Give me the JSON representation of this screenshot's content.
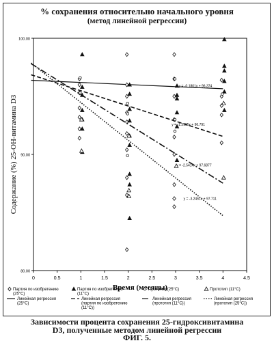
{
  "chart_data": {
    "type": "scatter",
    "title": "% сохранения относительно начального уровня",
    "subtitle": "(метод линейной регрессии)",
    "xlabel": "Время (месяцы)",
    "ylabel": "Содержание (%) 25-ОН-витамина D3",
    "xlim": [
      0,
      4.5
    ],
    "ylim": [
      80,
      100
    ],
    "x_ticks": [
      0,
      0.5,
      1,
      1.5,
      2,
      2.5,
      3,
      3.5,
      4,
      4.5
    ],
    "y_ticks": [
      80,
      90,
      100
    ],
    "x_tick_labels": [
      "0",
      "0.5",
      "1",
      "1.5",
      "2",
      "2.5",
      "3",
      "3.5",
      "4",
      "4.5"
    ],
    "y_tick_labels": [
      "80.00",
      "90.00",
      "100.00"
    ],
    "series": [
      {
        "name": "Партия по изобретению (25°C)",
        "marker": "diamond",
        "points": [
          [
            1,
            96.5
          ],
          [
            1,
            96.0
          ],
          [
            1,
            95.3
          ],
          [
            1,
            94.0
          ],
          [
            1,
            93.2
          ],
          [
            1,
            92.2
          ],
          [
            1,
            91.4
          ],
          [
            2,
            98.6
          ],
          [
            2,
            96.0
          ],
          [
            2,
            95.0
          ],
          [
            2,
            93.6
          ],
          [
            2,
            92.8
          ],
          [
            2,
            91.8
          ],
          [
            2,
            90.4
          ],
          [
            2,
            88.0
          ],
          [
            2,
            86.5
          ],
          [
            2,
            81.8
          ],
          [
            3,
            98.6
          ],
          [
            3,
            96.5
          ],
          [
            3,
            95.0
          ],
          [
            3,
            93.0
          ],
          [
            3,
            91.5
          ],
          [
            3,
            90.0
          ],
          [
            3,
            87.4
          ],
          [
            3,
            86.2
          ],
          [
            3,
            85.5
          ],
          [
            4,
            96.4
          ],
          [
            4,
            95.0
          ],
          [
            4,
            94.2
          ],
          [
            4,
            93.4
          ],
          [
            4,
            91.0
          ]
        ]
      },
      {
        "name": "Партия по изобретению (11°C)",
        "marker": "triangle-filled",
        "points": [
          [
            1,
            98.6
          ],
          [
            1,
            95.8
          ],
          [
            1,
            95.1
          ],
          [
            1,
            93.8
          ],
          [
            1,
            93.0
          ],
          [
            1,
            92.2
          ],
          [
            1,
            90.2
          ],
          [
            2,
            96.0
          ],
          [
            2,
            95.2
          ],
          [
            2,
            93.9
          ],
          [
            2,
            92.9
          ],
          [
            2,
            91.6
          ],
          [
            2,
            90.8
          ],
          [
            2,
            88.3
          ],
          [
            2,
            87.4
          ],
          [
            2,
            84.5
          ],
          [
            3,
            95.9
          ],
          [
            3,
            95.1
          ],
          [
            3,
            94.8
          ],
          [
            3,
            93.6
          ],
          [
            3,
            92.4
          ],
          [
            3,
            89.5
          ],
          [
            4,
            99.9
          ],
          [
            4,
            97.6
          ],
          [
            4,
            97.2
          ],
          [
            4,
            96.3
          ],
          [
            4,
            95.4
          ],
          [
            4,
            93.8
          ]
        ]
      },
      {
        "name": "Прототип (25°C)",
        "marker": "circle",
        "points": [
          [
            1,
            96.6
          ],
          [
            1,
            95.3
          ],
          [
            2,
            94.4
          ],
          [
            2,
            93.5
          ],
          [
            2,
            89.9
          ],
          [
            3,
            96.5
          ],
          [
            3,
            93.0
          ],
          [
            3,
            92.0
          ],
          [
            4,
            95.2
          ]
        ]
      },
      {
        "name": "Прототип (11°C)",
        "marker": "triangle-open",
        "points": [
          [
            1,
            93.0
          ],
          [
            1,
            90.3
          ],
          [
            2,
            91.6
          ],
          [
            2,
            86.9
          ],
          [
            2,
            86.4
          ],
          [
            3,
            89.0
          ],
          [
            4,
            94.4
          ],
          [
            4,
            88.0
          ]
        ]
      }
    ],
    "regression_lines": [
      {
        "name": "Линейная регрессия (25°C)",
        "style": "solid",
        "slope": -0.1801,
        "intercept": 96.374,
        "label": "y = -0.1801x + 96.374"
      },
      {
        "name": "Линейная регрессия (партия по изобретению (11°C))",
        "style": "dashed",
        "slope": -1.3105,
        "intercept": 96.791,
        "label": "y = -1.3105x + 96.791"
      },
      {
        "name": "Линейная регрессия (прототип (11°C))",
        "style": "dashdot",
        "slope": -2.5414,
        "intercept": 97.6877,
        "label": "y = -2.5414x + 97.6877"
      },
      {
        "name": "Линейная регрессия (прототип (25°C))",
        "style": "dotted",
        "slope": -3.2461,
        "intercept": 97.711,
        "label": "y = -3.2461x + 97.711"
      }
    ],
    "legend": {
      "placement": "bottom",
      "entries": [
        "Партия по изобретению (25°C)",
        "Партия по изобретению (11°C)",
        "Прототип (25°C)",
        "Прототип (11°C)",
        "Линейная регрессия (25°C)",
        "Линейная регрессия (партия по изобретению (11°C))",
        "Линейная регрессия (прототип (11°C))",
        "Линейная регрессия (прототип (25°C))"
      ]
    }
  },
  "figure": {
    "caption_line1": "Зависимости процента сохранения 25-гидроксивитамина",
    "caption_line2": "D3, полученные методом линейной регрессии",
    "figure_label": "ФИГ. 5."
  }
}
